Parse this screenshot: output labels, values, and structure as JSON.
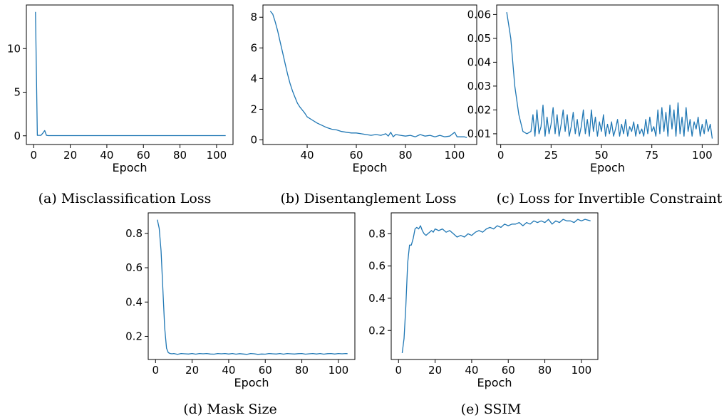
{
  "chart_data": [
    {
      "id": "a",
      "type": "line",
      "caption": "(a) Misclassification Loss",
      "xlabel": "Epoch",
      "ylabel": "",
      "xlim": [
        -4,
        109
      ],
      "ylim": [
        -1,
        15
      ],
      "xticks": [
        0,
        20,
        40,
        60,
        80,
        100
      ],
      "yticks": [
        0,
        5,
        10
      ],
      "grid": false,
      "series": [
        {
          "x": [
            1,
            2,
            3,
            4,
            5,
            6,
            7,
            8,
            10,
            20,
            40,
            60,
            80,
            100,
            105
          ],
          "y": [
            14.2,
            0.05,
            0.05,
            0.05,
            0.3,
            0.6,
            0.05,
            0.02,
            0.02,
            0.02,
            0.02,
            0.02,
            0.02,
            0.02,
            0.02
          ]
        }
      ]
    },
    {
      "id": "b",
      "type": "line",
      "caption": "(b) Disentanglement Loss",
      "xlabel": "Epoch",
      "ylabel": "",
      "xlim": [
        22,
        109
      ],
      "ylim": [
        -0.3,
        8.8
      ],
      "xticks": [
        40,
        60,
        80,
        100
      ],
      "yticks": [
        0,
        2,
        4,
        6,
        8
      ],
      "grid": false,
      "series": [
        {
          "x": [
            25,
            26,
            27,
            28,
            29,
            30,
            31,
            32,
            33,
            34,
            35,
            36,
            37,
            38,
            39,
            40,
            42,
            44,
            46,
            48,
            50,
            52,
            54,
            56,
            58,
            60,
            62,
            64,
            66,
            68,
            70,
            72,
            73,
            74,
            75,
            76,
            78,
            80,
            82,
            84,
            86,
            88,
            90,
            92,
            94,
            96,
            98,
            100,
            101,
            102,
            104,
            105
          ],
          "y": [
            8.4,
            8.2,
            7.7,
            7.1,
            6.4,
            5.7,
            5.0,
            4.3,
            3.7,
            3.2,
            2.8,
            2.4,
            2.15,
            1.95,
            1.75,
            1.5,
            1.3,
            1.1,
            0.95,
            0.8,
            0.7,
            0.65,
            0.55,
            0.5,
            0.45,
            0.45,
            0.4,
            0.35,
            0.3,
            0.35,
            0.3,
            0.4,
            0.25,
            0.5,
            0.2,
            0.35,
            0.3,
            0.25,
            0.3,
            0.2,
            0.35,
            0.25,
            0.3,
            0.2,
            0.3,
            0.2,
            0.25,
            0.5,
            0.2,
            0.2,
            0.2,
            0.15
          ]
        }
      ]
    },
    {
      "id": "c",
      "type": "line",
      "caption": "(c) Loss for Invertible Constraint",
      "xlabel": "Epoch",
      "ylabel": "",
      "xlim": [
        -2,
        108
      ],
      "ylim": [
        0.0055,
        0.064
      ],
      "xticks": [
        0,
        25,
        50,
        75,
        100
      ],
      "yticks": [
        0.01,
        0.02,
        0.03,
        0.04,
        0.05,
        0.06
      ],
      "grid": false,
      "series": [
        {
          "x": [
            3,
            5,
            7,
            9,
            11,
            13,
            15,
            16,
            17,
            18,
            19,
            20,
            21,
            22,
            23,
            24,
            25,
            26,
            27,
            28,
            29,
            30,
            31,
            32,
            33,
            34,
            35,
            36,
            37,
            38,
            39,
            40,
            41,
            42,
            43,
            44,
            45,
            46,
            47,
            48,
            49,
            50,
            51,
            52,
            53,
            54,
            55,
            56,
            57,
            58,
            59,
            60,
            61,
            62,
            63,
            64,
            65,
            66,
            67,
            68,
            69,
            70,
            71,
            72,
            73,
            74,
            75,
            76,
            77,
            78,
            79,
            80,
            81,
            82,
            83,
            84,
            85,
            86,
            87,
            88,
            89,
            90,
            91,
            92,
            93,
            94,
            95,
            96,
            97,
            98,
            99,
            100,
            101,
            102,
            103,
            104,
            105
          ],
          "y": [
            0.061,
            0.05,
            0.03,
            0.018,
            0.011,
            0.01,
            0.011,
            0.018,
            0.009,
            0.02,
            0.01,
            0.013,
            0.022,
            0.009,
            0.017,
            0.01,
            0.014,
            0.021,
            0.01,
            0.018,
            0.009,
            0.014,
            0.02,
            0.011,
            0.018,
            0.009,
            0.013,
            0.019,
            0.01,
            0.016,
            0.009,
            0.013,
            0.02,
            0.01,
            0.016,
            0.009,
            0.02,
            0.011,
            0.017,
            0.009,
            0.015,
            0.011,
            0.018,
            0.009,
            0.014,
            0.01,
            0.015,
            0.009,
            0.012,
            0.016,
            0.009,
            0.014,
            0.01,
            0.016,
            0.009,
            0.013,
            0.011,
            0.015,
            0.009,
            0.014,
            0.01,
            0.012,
            0.009,
            0.016,
            0.01,
            0.017,
            0.011,
            0.013,
            0.009,
            0.02,
            0.01,
            0.021,
            0.011,
            0.019,
            0.009,
            0.022,
            0.012,
            0.02,
            0.009,
            0.023,
            0.01,
            0.017,
            0.009,
            0.021,
            0.011,
            0.016,
            0.009,
            0.015,
            0.012,
            0.017,
            0.009,
            0.014,
            0.01,
            0.016,
            0.011,
            0.014,
            0.008
          ]
        }
      ]
    },
    {
      "id": "d",
      "type": "line",
      "caption": "(d) Mask Size",
      "xlabel": "Epoch",
      "ylabel": "",
      "xlim": [
        -4,
        109
      ],
      "ylim": [
        0.065,
        0.92
      ],
      "xticks": [
        0,
        20,
        40,
        60,
        80,
        100
      ],
      "yticks": [
        0.2,
        0.4,
        0.6,
        0.8
      ],
      "grid": false,
      "series": [
        {
          "x": [
            1,
            2,
            3,
            4,
            5,
            6,
            7,
            8,
            9,
            10,
            12,
            14,
            16,
            18,
            20,
            22,
            24,
            26,
            28,
            30,
            32,
            34,
            36,
            38,
            40,
            42,
            44,
            46,
            48,
            50,
            52,
            54,
            56,
            58,
            60,
            62,
            64,
            66,
            68,
            70,
            72,
            74,
            76,
            78,
            80,
            82,
            84,
            86,
            88,
            90,
            92,
            94,
            96,
            98,
            100,
            102,
            104,
            105
          ],
          "y": [
            0.88,
            0.83,
            0.7,
            0.48,
            0.25,
            0.13,
            0.105,
            0.1,
            0.098,
            0.1,
            0.095,
            0.1,
            0.098,
            0.097,
            0.1,
            0.096,
            0.1,
            0.098,
            0.1,
            0.097,
            0.096,
            0.1,
            0.098,
            0.1,
            0.097,
            0.1,
            0.096,
            0.099,
            0.097,
            0.095,
            0.1,
            0.098,
            0.095,
            0.097,
            0.096,
            0.1,
            0.098,
            0.097,
            0.1,
            0.096,
            0.1,
            0.098,
            0.097,
            0.099,
            0.1,
            0.096,
            0.098,
            0.1,
            0.097,
            0.1,
            0.096,
            0.099,
            0.1,
            0.097,
            0.1,
            0.098,
            0.1,
            0.099
          ]
        }
      ]
    },
    {
      "id": "e",
      "type": "line",
      "caption": "(e) SSIM",
      "xlabel": "Epoch",
      "ylabel": "",
      "xlim": [
        -4,
        109
      ],
      "ylim": [
        0.02,
        0.93
      ],
      "xticks": [
        0,
        20,
        40,
        60,
        80,
        100
      ],
      "yticks": [
        0.2,
        0.4,
        0.6,
        0.8
      ],
      "grid": false,
      "series": [
        {
          "x": [
            2,
            3,
            4,
            5,
            6,
            7,
            8,
            9,
            10,
            11,
            12,
            13,
            14,
            15,
            16,
            17,
            18,
            19,
            20,
            22,
            24,
            26,
            28,
            30,
            32,
            34,
            36,
            38,
            40,
            42,
            44,
            46,
            48,
            50,
            52,
            54,
            56,
            58,
            60,
            62,
            64,
            66,
            68,
            70,
            72,
            74,
            76,
            78,
            80,
            82,
            84,
            86,
            88,
            90,
            92,
            94,
            96,
            98,
            100,
            102,
            105
          ],
          "y": [
            0.06,
            0.15,
            0.35,
            0.62,
            0.73,
            0.73,
            0.77,
            0.83,
            0.84,
            0.83,
            0.85,
            0.82,
            0.8,
            0.79,
            0.8,
            0.81,
            0.82,
            0.81,
            0.83,
            0.82,
            0.83,
            0.81,
            0.82,
            0.8,
            0.78,
            0.79,
            0.78,
            0.8,
            0.79,
            0.81,
            0.82,
            0.81,
            0.83,
            0.84,
            0.83,
            0.85,
            0.84,
            0.86,
            0.85,
            0.86,
            0.86,
            0.87,
            0.85,
            0.87,
            0.86,
            0.88,
            0.87,
            0.88,
            0.87,
            0.89,
            0.86,
            0.88,
            0.87,
            0.89,
            0.88,
            0.88,
            0.87,
            0.89,
            0.88,
            0.89,
            0.88
          ]
        }
      ]
    }
  ]
}
